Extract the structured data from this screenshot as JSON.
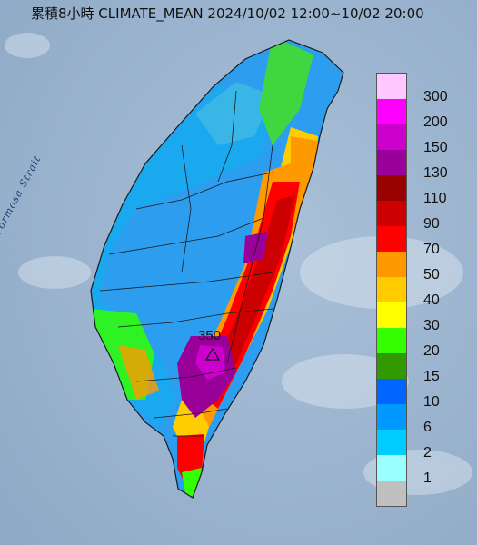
{
  "title": "累積8小時 CLIMATE_MEAN 2024/10/02 12:00~10/02 20:00",
  "strait_label": "Formosa Strait",
  "max_value": "350",
  "legend": {
    "items": [
      {
        "label": "300",
        "color": "#ffc8ff"
      },
      {
        "label": "200",
        "color": "#ff00ff"
      },
      {
        "label": "150",
        "color": "#cc00cc"
      },
      {
        "label": "130",
        "color": "#990099"
      },
      {
        "label": "110",
        "color": "#990000"
      },
      {
        "label": "90",
        "color": "#cc0000"
      },
      {
        "label": "70",
        "color": "#ff0000"
      },
      {
        "label": "50",
        "color": "#ff9900"
      },
      {
        "label": "40",
        "color": "#ffcc00"
      },
      {
        "label": "30",
        "color": "#ffff00"
      },
      {
        "label": "20",
        "color": "#33ff00"
      },
      {
        "label": "15",
        "color": "#339900"
      },
      {
        "label": "10",
        "color": "#0066ff"
      },
      {
        "label": "6",
        "color": "#0099ff"
      },
      {
        "label": "2",
        "color": "#00ccff"
      },
      {
        "label": "1",
        "color": "#99ffff"
      },
      {
        "label": "",
        "color": "#c0c0c0"
      }
    ]
  }
}
